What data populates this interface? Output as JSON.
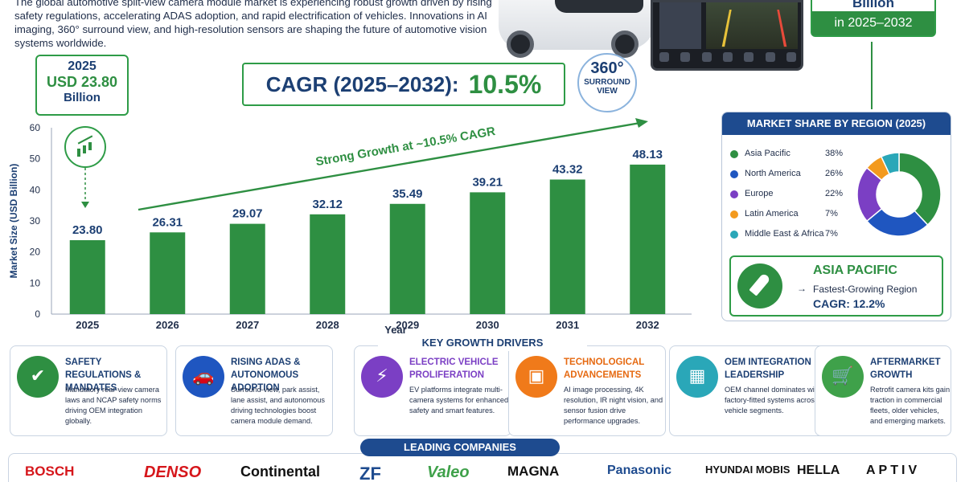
{
  "intro": "The global automotive split-view camera module market is experiencing robust growth driven by rising safety regulations, accelerating ADAS adoption, and rapid electrification of vehicles. Innovations in AI imaging, 360° surround view, and high-resolution sensors are shaping the future of automotive vision systems worldwide.",
  "badge360": {
    "big": "360°",
    "small1": "SURROUND",
    "small2": "VIEW"
  },
  "future_box": {
    "top": "Billion",
    "bottom": "in 2025–2032"
  },
  "start_box": {
    "year": "2025",
    "value": "USD 23.80",
    "unit": "Billion"
  },
  "cagr": {
    "label": "CAGR (2025–2032):",
    "value": "10.5%"
  },
  "colors": {
    "bar": "#2e8f42",
    "accent_blue": "#1e4b8f",
    "arrow": "#2e8f42"
  },
  "chart_data": {
    "type": "bar",
    "categories": [
      "2025",
      "2026",
      "2027",
      "2028",
      "2029",
      "2030",
      "2031",
      "2032"
    ],
    "values": [
      23.8,
      26.31,
      29.07,
      32.12,
      35.49,
      39.21,
      43.32,
      48.13
    ],
    "value_labels": [
      "23.80",
      "26.31",
      "29.07",
      "32.12",
      "35.49",
      "39.21",
      "43.32",
      "48.13"
    ],
    "xlabel": "Year",
    "ylabel": "Market Size (USD Billion)",
    "ylim": [
      0,
      60
    ],
    "yticks": [
      "0",
      "10",
      "20",
      "30",
      "40",
      "50",
      "60"
    ],
    "grid": false,
    "annotation": "Strong Growth at ~10.5% CAGR"
  },
  "region": {
    "title": "MARKET SHARE BY REGION (2025)",
    "items": [
      {
        "name": "Asia Pacific",
        "pct": "38%",
        "value": 38,
        "color": "#2e8f42"
      },
      {
        "name": "North America",
        "pct": "26%",
        "value": 26,
        "color": "#1f56c0"
      },
      {
        "name": "Europe",
        "pct": "22%",
        "value": 22,
        "color": "#7b3fc4"
      },
      {
        "name": "Latin America",
        "pct": "7%",
        "value": 7,
        "color": "#f39a1e"
      },
      {
        "name": "Middle East & Africa",
        "pct": "7%",
        "value": 7,
        "color": "#2aa7b8"
      }
    ],
    "highlight": {
      "title": "ASIA PACIFIC",
      "arrow": "→",
      "subtitle": "Fastest-Growing Region",
      "cagr": "CAGR: 12.2%"
    }
  },
  "drivers": {
    "title": "KEY GROWTH DRIVERS",
    "items": [
      {
        "title": "SAFETY REGULATIONS & MANDATES",
        "text": "Mandatory rear-view camera laws and NCAP safety norms driving OEM integration globally.",
        "color": "#2e8f42",
        "title_color": "#1c3f73",
        "icon": "shield-check-icon",
        "glyph": "✔"
      },
      {
        "title": "RISING ADAS & AUTONOMOUS ADOPTION",
        "text": "Surround-view, park assist, lane assist, and autonomous driving technologies boost camera module demand.",
        "color": "#1f56c0",
        "title_color": "#1c3f73",
        "icon": "car-signal-icon",
        "glyph": "🚗"
      },
      {
        "title": "ELECTRIC VEHICLE PROLIFERATION",
        "text": "EV platforms integrate multi-camera systems for enhanced safety and smart features.",
        "color": "#7b3fc4",
        "title_color": "#7b3fc4",
        "icon": "ev-charging-icon",
        "glyph": "⚡"
      },
      {
        "title": "TECHNOLOGICAL ADVANCEMENTS",
        "text": "AI image processing, 4K resolution, IR night vision, and sensor fusion drive performance upgrades.",
        "color": "#f07a1a",
        "title_color": "#e66a12",
        "icon": "chip-icon",
        "glyph": "▣"
      },
      {
        "title": "OEM INTEGRATION LEADERSHIP",
        "text": "OEM channel dominates with factory-fitted systems across vehicle segments.",
        "color": "#2aa7b8",
        "title_color": "#1c3f73",
        "icon": "factory-icon",
        "glyph": "▦"
      },
      {
        "title": "AFTERMARKET GROWTH",
        "text": "Retrofit camera kits gain traction in commercial fleets, older vehicles, and emerging markets.",
        "color": "#3fa14a",
        "title_color": "#1c3f73",
        "icon": "shopping-cart-icon",
        "glyph": "🛒"
      }
    ]
  },
  "companies": {
    "title": "LEADING COMPANIES",
    "logos": [
      {
        "name": "BOSCH",
        "color": "#d6161b"
      },
      {
        "name": "DENSO",
        "color": "#d6161b"
      },
      {
        "name": "Continental",
        "color": "#111111"
      },
      {
        "name": "ZF",
        "color": "#1e4b8f"
      },
      {
        "name": "Valeo",
        "color": "#3fa14a"
      },
      {
        "name": "MAGNA",
        "color": "#111111"
      },
      {
        "name": "Panasonic",
        "color": "#1e4b8f"
      },
      {
        "name": "HYUNDAI MOBIS",
        "color": "#111111"
      },
      {
        "name": "HELLA",
        "color": "#111111"
      },
      {
        "name": "APTIV",
        "color": "#111111"
      }
    ]
  }
}
